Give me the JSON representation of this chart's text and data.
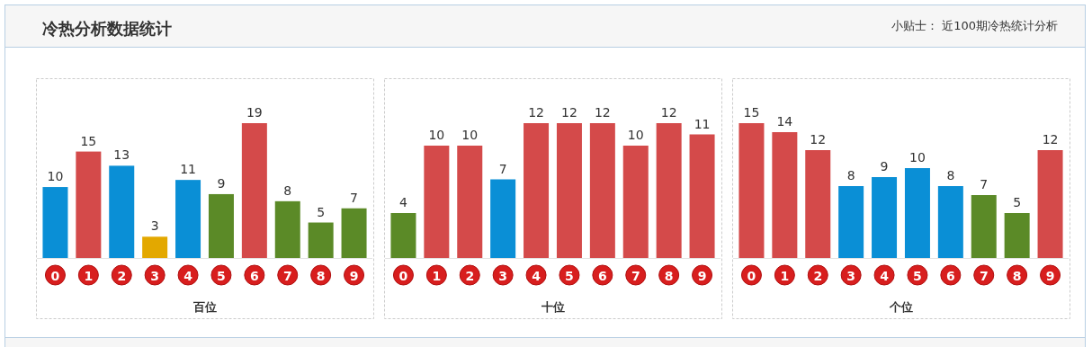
{
  "chart_data": [
    {
      "type": "other",
      "title": "冷热分析数据统计",
      "subtitle": "小贴士：  近100期冷热统计分析"
    },
    {
      "type": "bar",
      "xlabel": "百位",
      "categories": [
        "0",
        "1",
        "2",
        "3",
        "4",
        "5",
        "6",
        "7",
        "8",
        "9"
      ],
      "values": [
        10,
        15,
        13,
        3,
        11,
        9,
        19,
        8,
        5,
        7
      ],
      "colors": [
        "#0a8fd6",
        "#d44a4a",
        "#0a8fd6",
        "#e3a800",
        "#0a8fd6",
        "#5b8a27",
        "#d44a4a",
        "#5b8a27",
        "#5b8a27",
        "#5b8a27"
      ],
      "data_labels": true
    },
    {
      "type": "bar",
      "xlabel": "十位",
      "categories": [
        "0",
        "1",
        "2",
        "3",
        "4",
        "5",
        "6",
        "7",
        "8",
        "9"
      ],
      "values": [
        4,
        10,
        10,
        7,
        12,
        12,
        12,
        10,
        12,
        11
      ],
      "colors": [
        "#5b8a27",
        "#d44a4a",
        "#d44a4a",
        "#0a8fd6",
        "#d44a4a",
        "#d44a4a",
        "#d44a4a",
        "#d44a4a",
        "#d44a4a",
        "#d44a4a"
      ],
      "data_labels": true
    },
    {
      "type": "bar",
      "xlabel": "个位",
      "categories": [
        "0",
        "1",
        "2",
        "3",
        "4",
        "5",
        "6",
        "7",
        "8",
        "9"
      ],
      "values": [
        15,
        14,
        12,
        8,
        9,
        10,
        8,
        7,
        5,
        12
      ],
      "colors": [
        "#d44a4a",
        "#d44a4a",
        "#d44a4a",
        "#0a8fd6",
        "#0a8fd6",
        "#0a8fd6",
        "#0a8fd6",
        "#5b8a27",
        "#5b8a27",
        "#d44a4a"
      ],
      "data_labels": true
    }
  ]
}
